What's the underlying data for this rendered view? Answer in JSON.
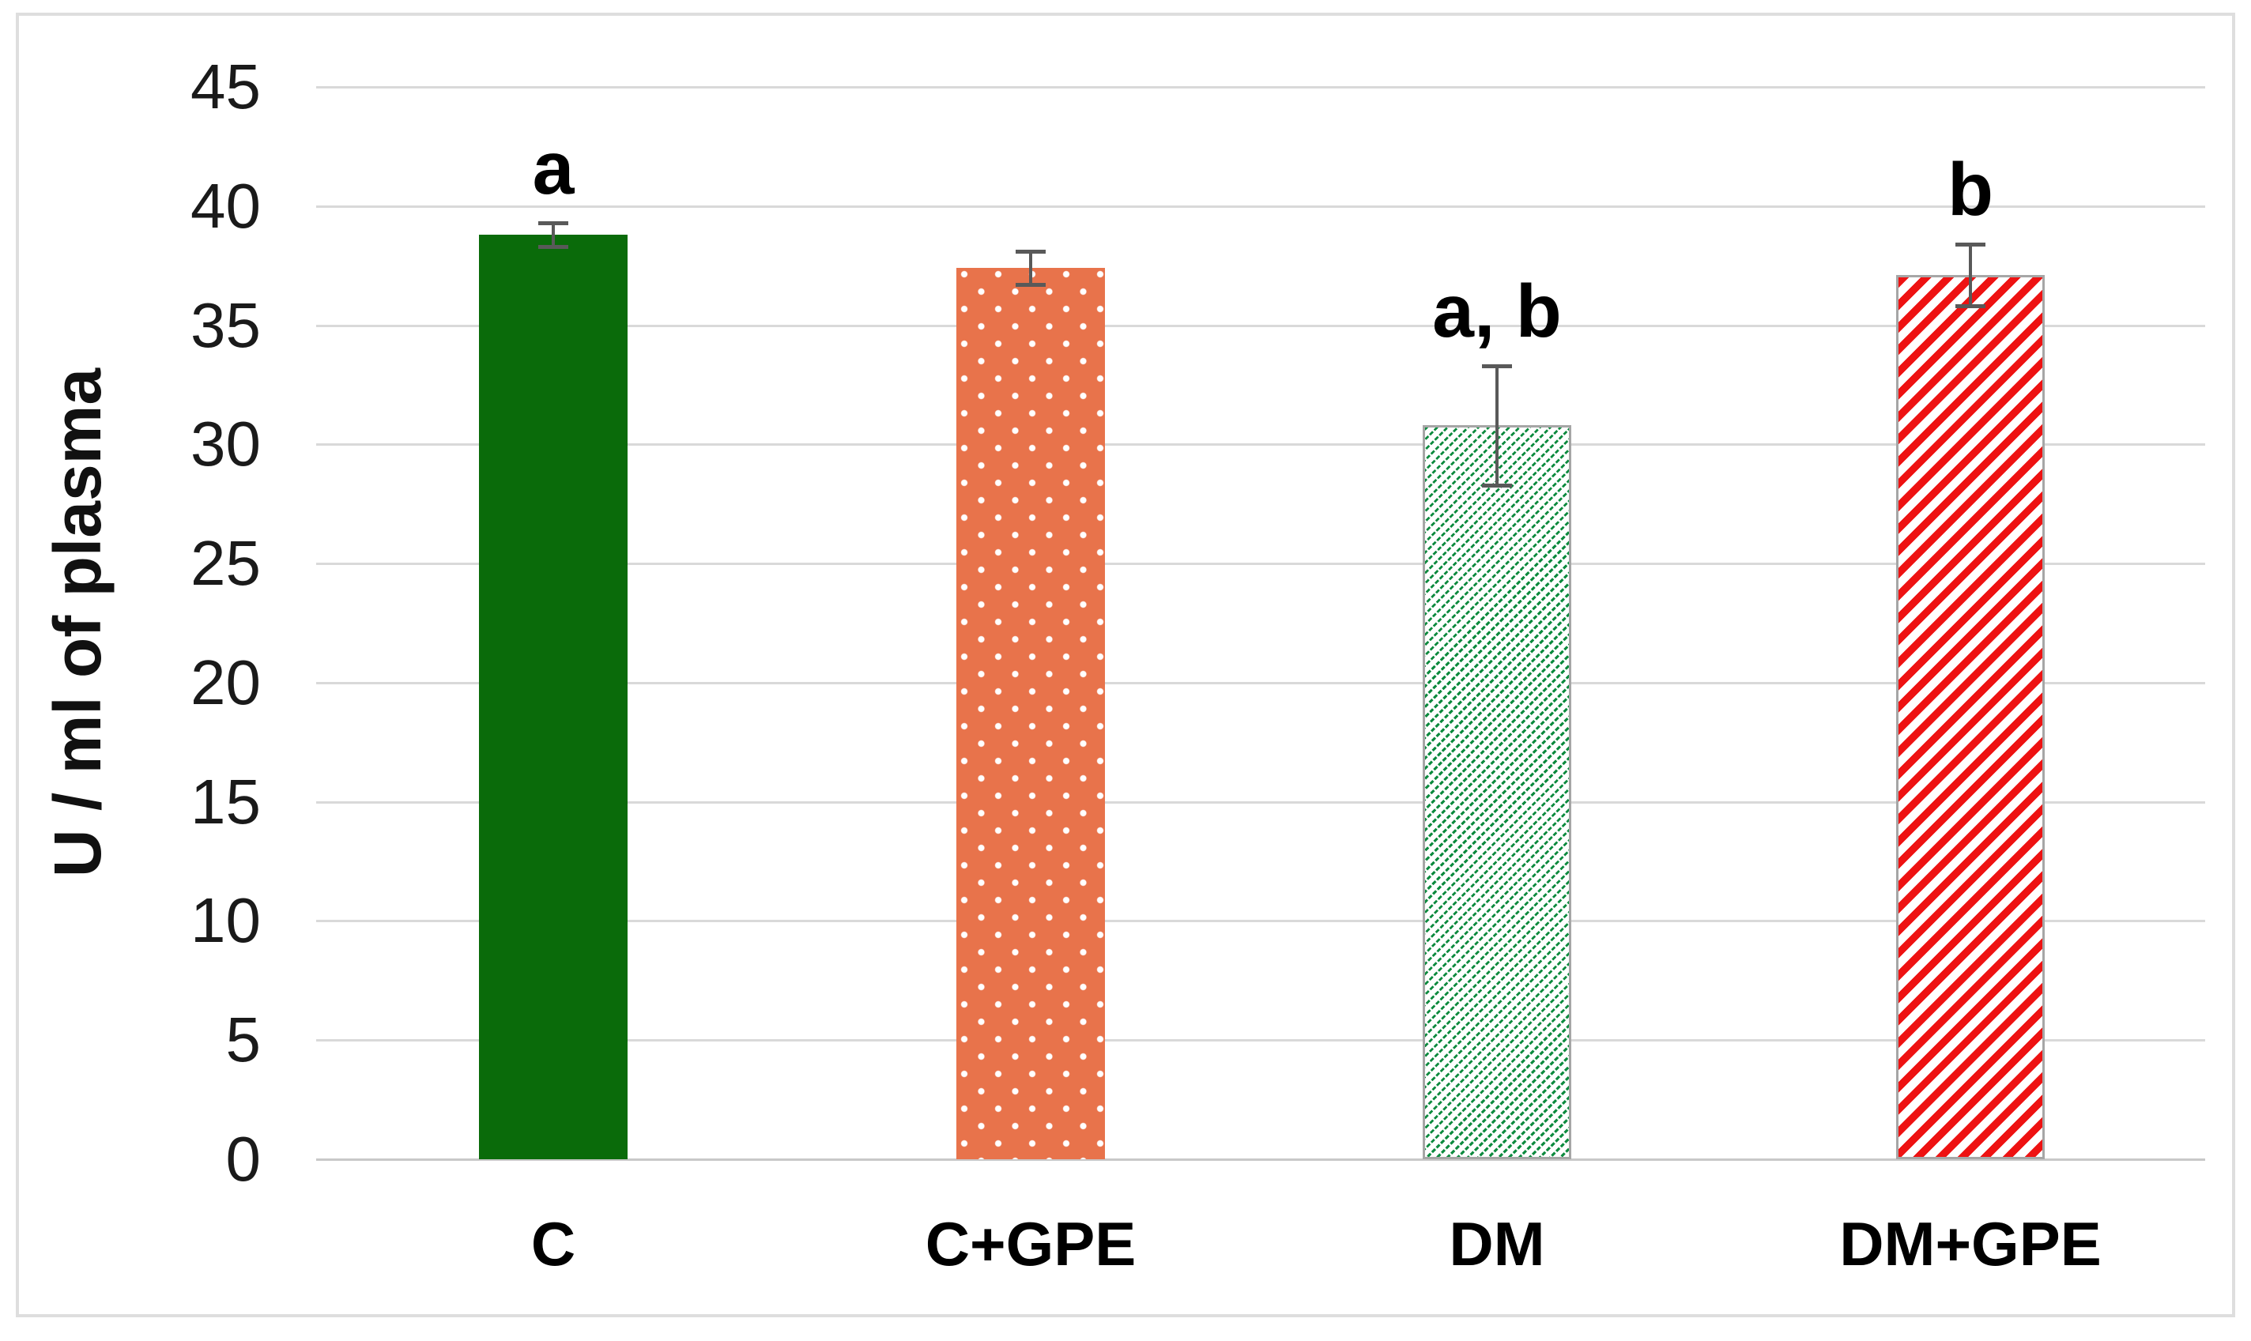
{
  "chart_data": {
    "type": "bar",
    "title": "",
    "ylabel": "U / ml of plasma",
    "xlabel": "",
    "ylim": [
      0,
      45
    ],
    "yticks": [
      45,
      40,
      35,
      30,
      25,
      20,
      15,
      10,
      5,
      0
    ],
    "grid": true,
    "legend_position": "none",
    "categories": [
      "C",
      "C+GPE",
      "DM",
      "DM+GPE"
    ],
    "series": [
      {
        "name": "U / ml of plasma",
        "values": [
          38.8,
          37.4,
          30.8,
          37.1
        ],
        "errors": [
          0.5,
          0.7,
          2.5,
          1.3
        ],
        "annotations": [
          "a",
          "",
          "a, b",
          "b"
        ]
      }
    ],
    "bar_styles": [
      {
        "category": "C",
        "pattern": "solid",
        "fill": "#0a6b0a",
        "accent": "#0a6b0a",
        "border": "none"
      },
      {
        "category": "C+GPE",
        "pattern": "dots",
        "fill": "#e8734b",
        "accent": "#ffffff",
        "border": "none"
      },
      {
        "category": "DM",
        "pattern": "diag-dash",
        "fill": "#ffffff",
        "accent": "#0c8a3e",
        "border": "#a6a6a6"
      },
      {
        "category": "DM+GPE",
        "pattern": "diag-stripe",
        "fill": "#ffffff",
        "accent": "#ee1212",
        "border": "#a6a6a6"
      }
    ],
    "colors": {
      "gridline": "#d9d9d9",
      "baseline": "#c8c8c8",
      "error_bar": "#595959",
      "frame": "#dedede",
      "text": "#111111"
    }
  }
}
